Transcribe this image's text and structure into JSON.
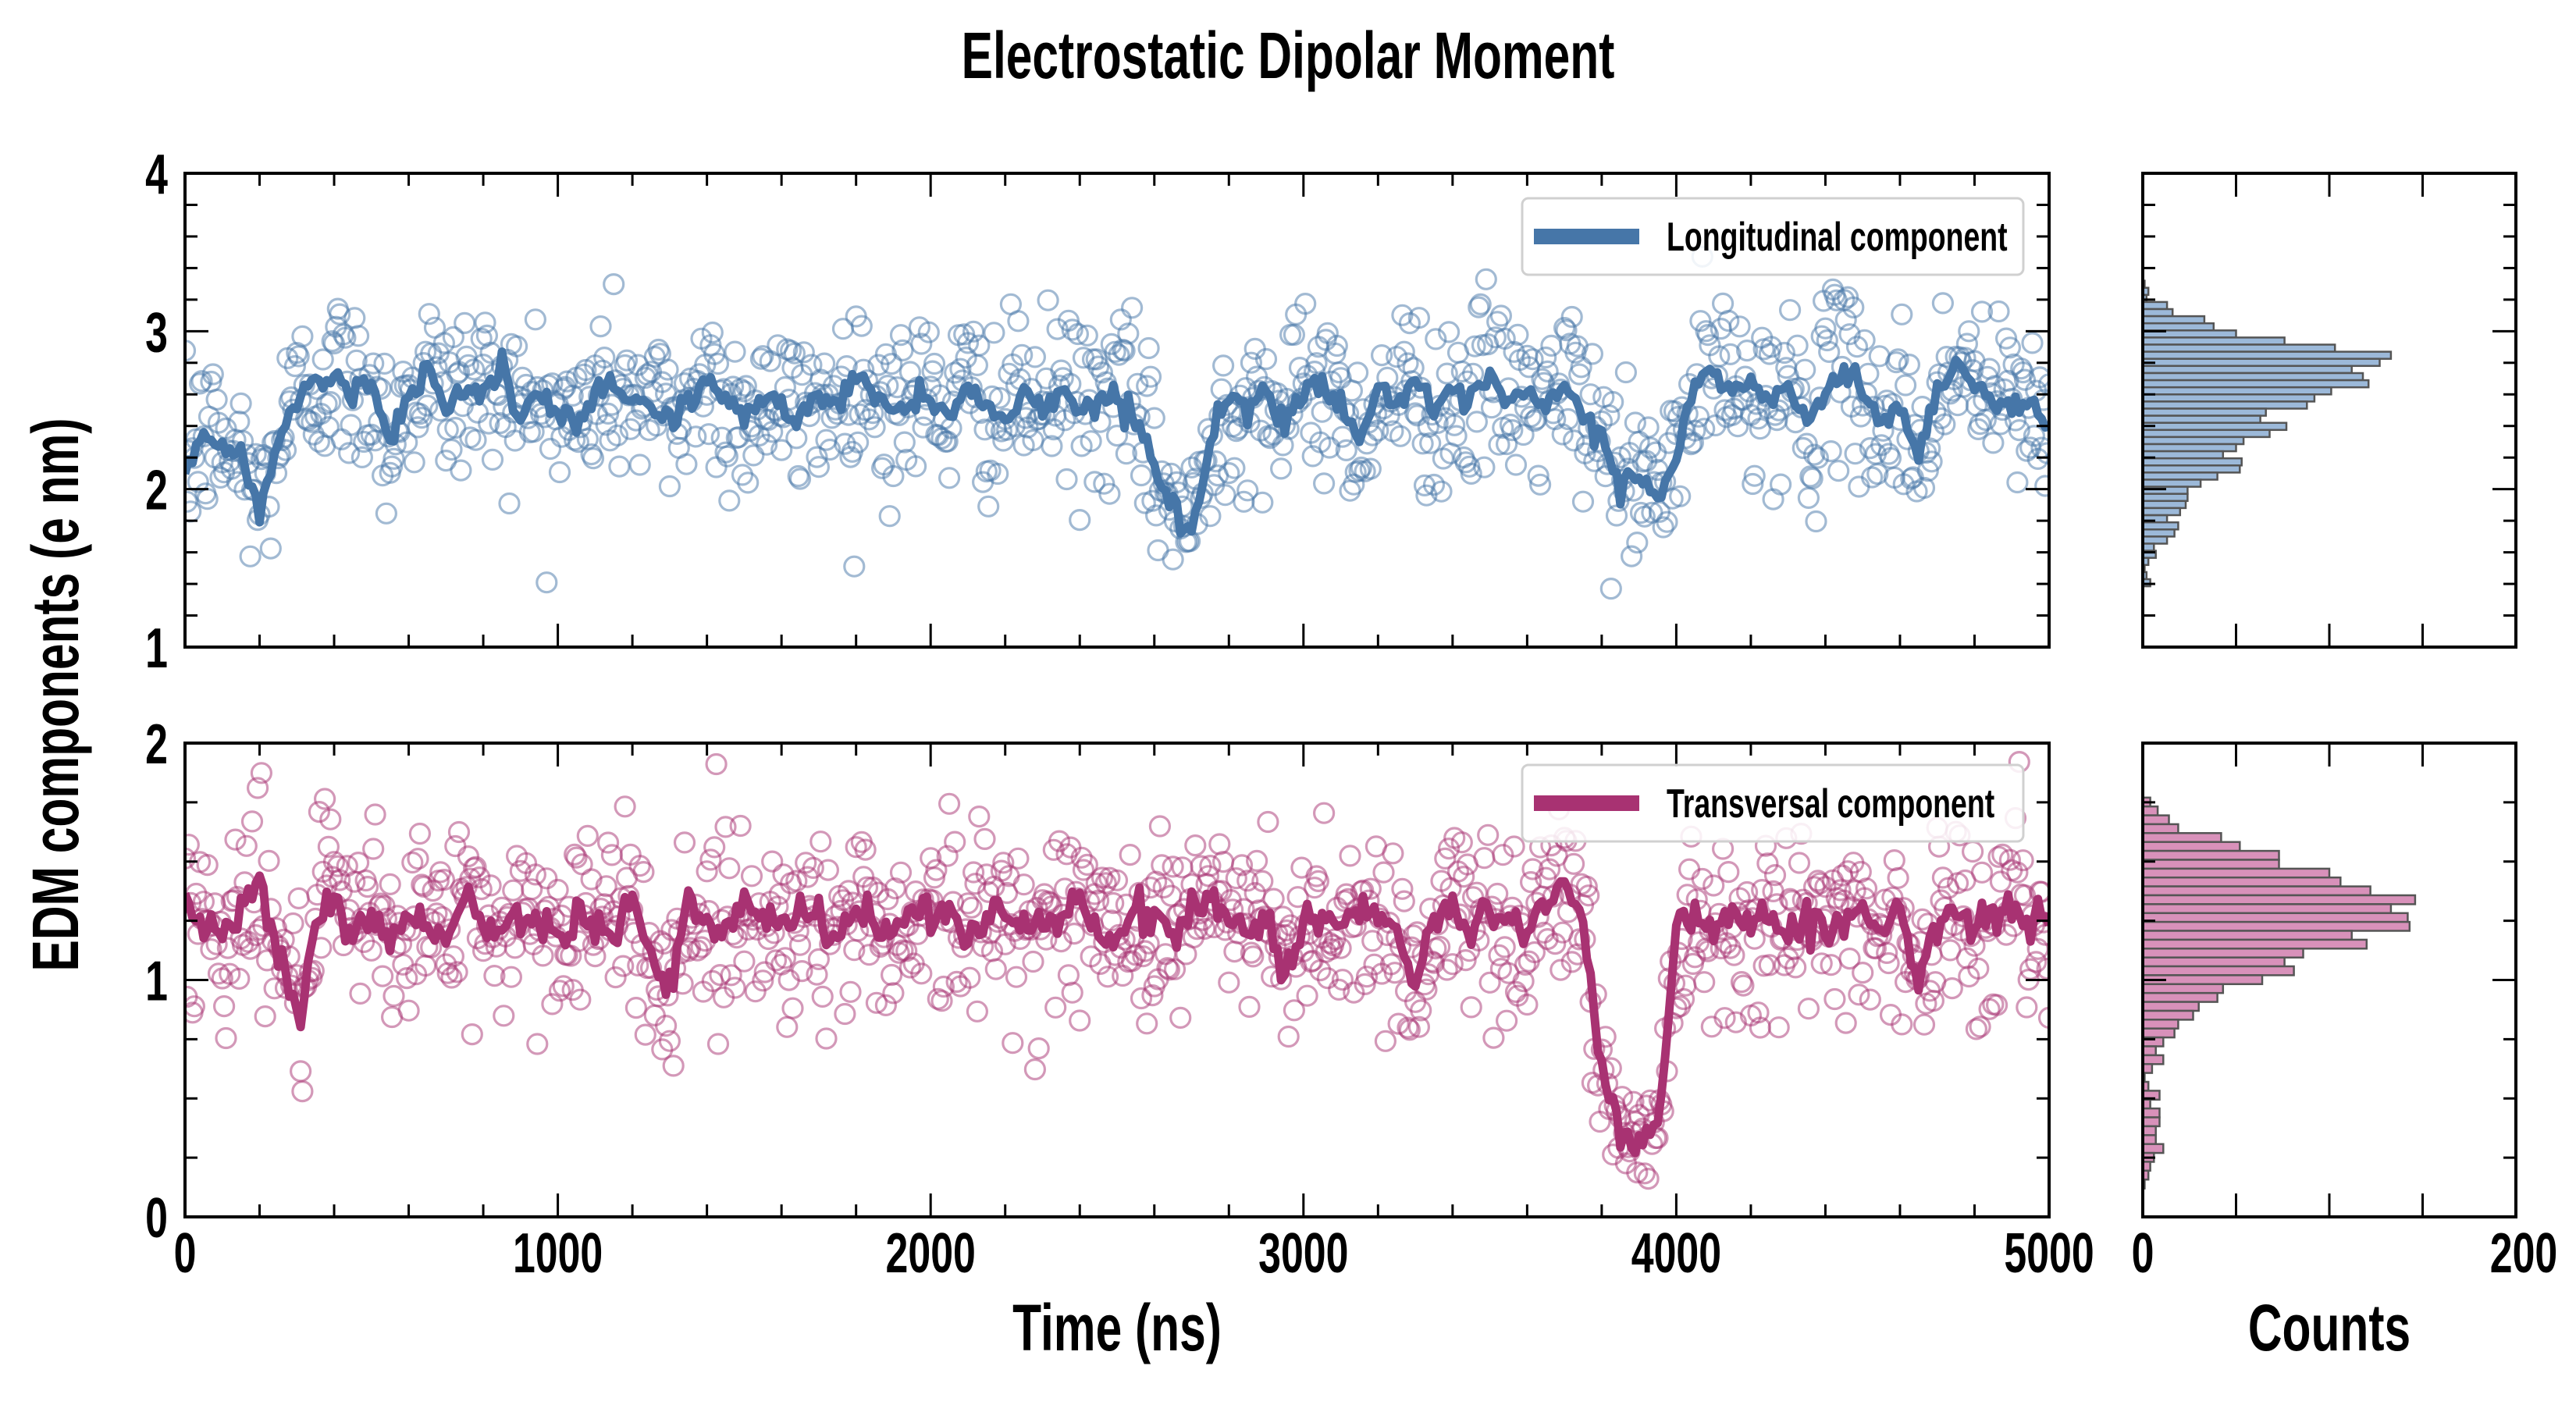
{
  "title": "Electrostatic Dipolar Moment",
  "ylabel": "EDM components (e nm)",
  "xlabel_time": "Time (ns)",
  "xlabel_counts": "Counts",
  "colors": {
    "longitudinal": "#4676a8",
    "transversal": "#a83272",
    "hist_longitudinal": "#9cb9d9",
    "hist_transversal": "#d891ba",
    "hist_edge": "#555555"
  },
  "chart_data": [
    {
      "type": "scatter+line",
      "panel": "top",
      "legend": "Longitudinal component",
      "legend_position": "top-right",
      "xlim": [
        0,
        5000
      ],
      "ylim": [
        1,
        4
      ],
      "xticks": [
        "0",
        "1000",
        "2000",
        "3000",
        "4000",
        "5000"
      ],
      "yticks": [
        "1",
        "2",
        "3",
        "4"
      ],
      "x_minor_step": 200,
      "y_minor_step": 0.2,
      "running_average_step_ns": 50,
      "running_average": [
        2.1,
        2.35,
        2.25,
        2.2,
        1.9,
        2.3,
        2.55,
        2.7,
        2.75,
        2.6,
        2.7,
        2.3,
        2.6,
        2.75,
        2.55,
        2.65,
        2.6,
        2.75,
        2.45,
        2.6,
        2.45,
        2.4,
        2.6,
        2.65,
        2.6,
        2.5,
        2.45,
        2.55,
        2.7,
        2.55,
        2.45,
        2.6,
        2.5,
        2.45,
        2.6,
        2.55,
        2.7,
        2.6,
        2.5,
        2.55,
        2.6,
        2.5,
        2.6,
        2.55,
        2.45,
        2.6,
        2.5,
        2.65,
        2.5,
        2.55,
        2.6,
        2.45,
        2.15,
        1.9,
        1.7,
        2.3,
        2.6,
        2.5,
        2.65,
        2.4,
        2.6,
        2.7,
        2.55,
        2.3,
        2.65,
        2.55,
        2.7,
        2.45,
        2.6,
        2.55,
        2.7,
        2.55,
        2.6,
        2.5,
        2.65,
        2.45,
        2.35,
        2.0,
        2.1,
        1.95,
        2.2,
        2.65,
        2.75,
        2.6,
        2.7,
        2.55,
        2.65,
        2.4,
        2.6,
        2.75,
        2.65,
        2.4,
        2.55,
        2.2,
        2.6,
        2.8,
        2.65,
        2.6,
        2.5,
        2.55,
        2.4
      ],
      "scatter_step_ns": 5,
      "scatter_spread_sd": 0.28
    },
    {
      "type": "scatter+line",
      "panel": "bottom",
      "legend": "Transversal component",
      "legend_position": "top-right",
      "xlim": [
        0,
        5000
      ],
      "ylim": [
        0,
        2
      ],
      "xticks": [
        "0",
        "1000",
        "2000",
        "3000",
        "4000",
        "5000"
      ],
      "yticks": [
        "0",
        "1",
        "2"
      ],
      "x_minor_step": 200,
      "y_minor_step": 0.25,
      "running_average_step_ns": 50,
      "running_average": [
        1.3,
        1.25,
        1.2,
        1.3,
        1.42,
        1.15,
        0.85,
        1.25,
        1.3,
        1.2,
        1.28,
        1.15,
        1.3,
        1.25,
        1.2,
        1.3,
        1.25,
        1.2,
        1.3,
        1.25,
        1.2,
        1.3,
        1.25,
        1.2,
        1.35,
        1.1,
        0.95,
        1.3,
        1.25,
        1.2,
        1.3,
        1.25,
        1.22,
        1.3,
        1.25,
        1.15,
        1.3,
        1.25,
        1.2,
        1.3,
        1.25,
        1.3,
        1.2,
        1.25,
        1.3,
        1.2,
        1.28,
        1.25,
        1.3,
        1.2,
        1.15,
        1.3,
        1.25,
        1.2,
        1.3,
        1.35,
        1.25,
        1.2,
        1.3,
        1.0,
        1.25,
        1.3,
        1.2,
        1.3,
        1.25,
        1.2,
        0.95,
        1.25,
        1.3,
        1.2,
        1.3,
        1.25,
        1.2,
        1.35,
        1.4,
        1.3,
        0.6,
        0.35,
        0.35,
        0.38,
        1.2,
        1.3,
        1.2,
        1.28,
        1.25,
        1.3,
        1.15,
        1.25,
        1.2,
        1.28,
        1.3,
        1.2,
        1.3,
        0.95,
        1.25,
        1.3,
        1.2,
        1.25,
        1.3,
        1.25,
        1.25
      ],
      "scatter_step_ns": 5,
      "scatter_spread_sd": 0.2
    },
    {
      "type": "histogram",
      "panel": "top-right",
      "orientation": "horizontal",
      "xlim": [
        0,
        200
      ],
      "ylim": [
        1,
        4
      ],
      "xticks": [
        "0",
        "200"
      ],
      "x_minor_step": 50,
      "bin_top": 3.32,
      "bin_width": 0.045,
      "counts_high_to_low": [
        1,
        3,
        2,
        13,
        16,
        33,
        38,
        50,
        76,
        103,
        133,
        127,
        112,
        118,
        121,
        101,
        92,
        88,
        66,
        63,
        77,
        68,
        54,
        50,
        43,
        53,
        52,
        40,
        31,
        24,
        24,
        23,
        20,
        13,
        19,
        17,
        13,
        6,
        7,
        3,
        1,
        2,
        4
      ]
    },
    {
      "type": "histogram",
      "panel": "bottom-right",
      "orientation": "horizontal",
      "xlim": [
        0,
        200
      ],
      "ylim": [
        0,
        2
      ],
      "xticks": [
        "0",
        "200"
      ],
      "x_minor_step": 50,
      "bin_top": 1.77,
      "bin_width": 0.0375,
      "counts_high_to_low": [
        4,
        8,
        14,
        19,
        42,
        52,
        73,
        73,
        100,
        106,
        122,
        146,
        133,
        142,
        143,
        112,
        120,
        86,
        76,
        81,
        64,
        43,
        40,
        30,
        27,
        19,
        17,
        11,
        7,
        11,
        5,
        1,
        3,
        9,
        4,
        9,
        9,
        7,
        7,
        11,
        6,
        4,
        3,
        1
      ]
    }
  ]
}
